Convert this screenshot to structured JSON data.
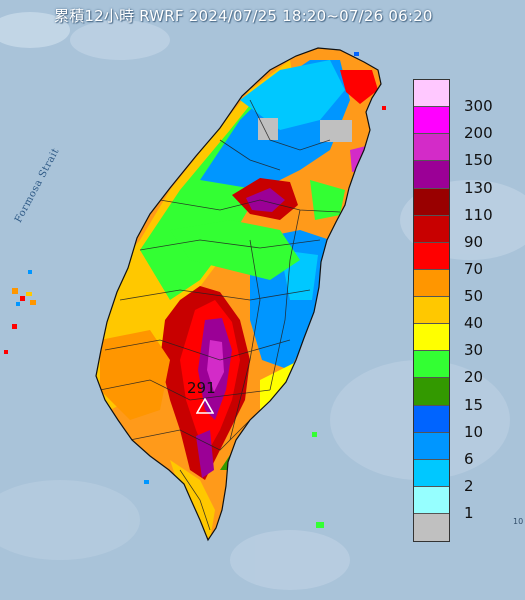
{
  "title": "累積12小時 RWRF 2024/07/25 18:20~07/26 06:20",
  "strait_label": "Formosa Strait",
  "station": {
    "value": "291",
    "marker": "triangle-station-icon"
  },
  "corner_text": "10",
  "legend": {
    "labels": [
      "300",
      "200",
      "150",
      "130",
      "110",
      "90",
      "70",
      "50",
      "40",
      "30",
      "20",
      "15",
      "10",
      "6",
      "2",
      "1"
    ],
    "colors": [
      "#ffc8ff",
      "#ff00ff",
      "#d32bc8",
      "#9b0096",
      "#990000",
      "#c80000",
      "#ff0000",
      "#ff9600",
      "#ffc800",
      "#ffff00",
      "#33ff33",
      "#339900",
      "#0064ff",
      "#0096ff",
      "#00c8ff",
      "#96ffff",
      "#c0c0c0"
    ]
  },
  "colors": {
    "sea": "#a9c3d9",
    "land_base": "#ff9a1a",
    "border": "#222222"
  }
}
